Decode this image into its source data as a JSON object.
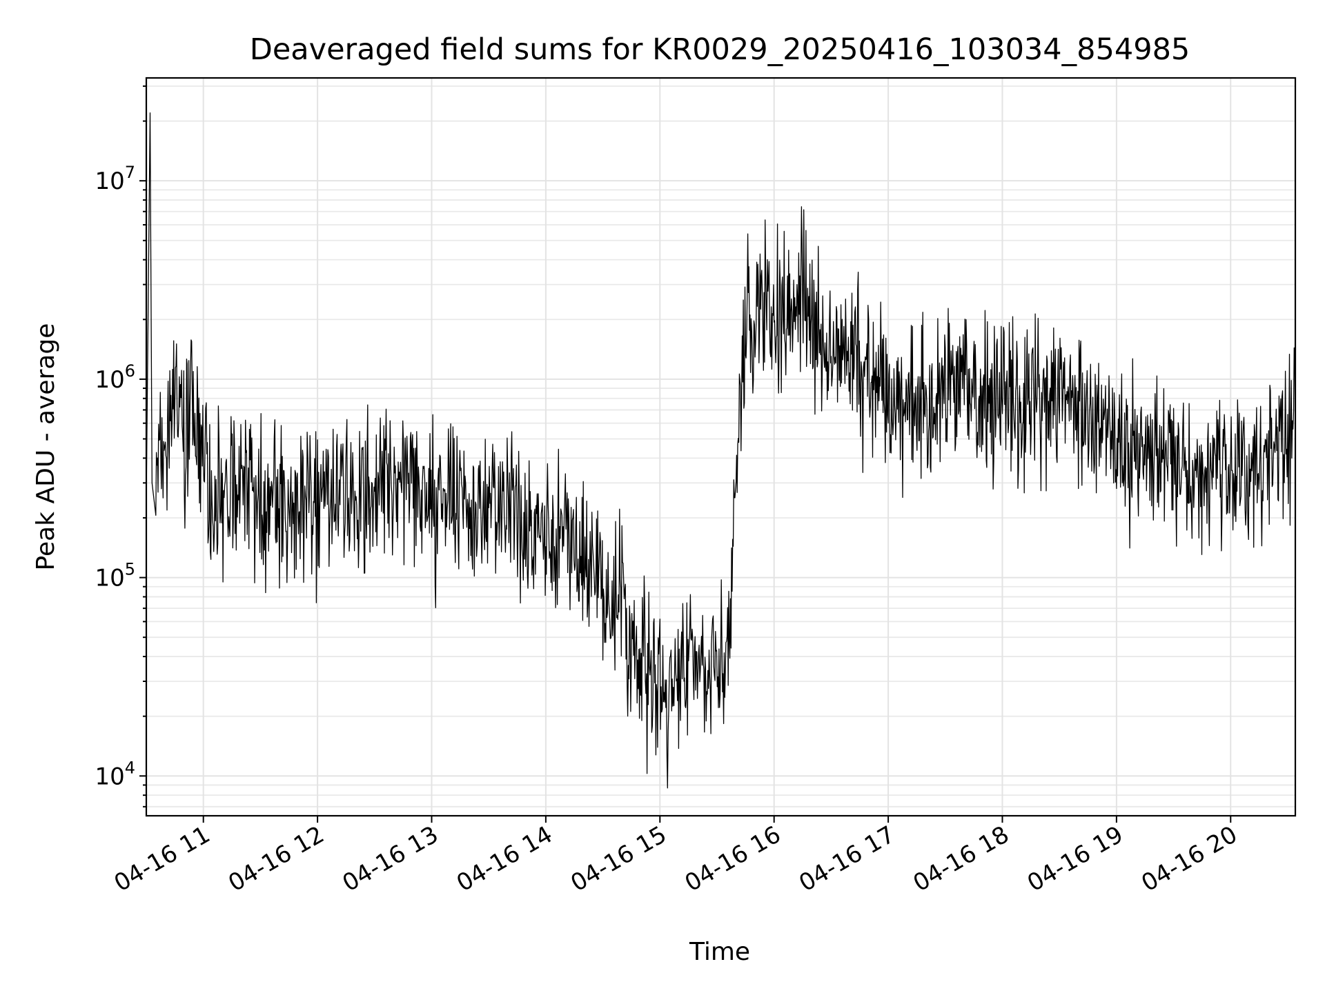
{
  "chart_data": {
    "type": "line",
    "title": "Deaveraged field sums for KR0029_20250416_103034_854985",
    "xlabel": "Time",
    "ylabel": "Peak ADU - average",
    "xlim": [
      "04-16 10:30",
      "04-16 20:34"
    ],
    "ylim": [
      6300,
      33000000
    ],
    "y_scale": "log",
    "grid": true,
    "x_ticks": [
      "04-16 11",
      "04-16 12",
      "04-16 13",
      "04-16 14",
      "04-16 15",
      "04-16 16",
      "04-16 17",
      "04-16 18",
      "04-16 19",
      "04-16 20"
    ],
    "y_ticks": [
      {
        "value": 10000,
        "base": "10",
        "exp": "4"
      },
      {
        "value": 100000,
        "base": "10",
        "exp": "5"
      },
      {
        "value": 1000000,
        "base": "10",
        "exp": "6"
      },
      {
        "value": 10000000,
        "base": "10",
        "exp": "7"
      }
    ],
    "series": [
      {
        "color": "#000000",
        "x": [
          "04-16 10:30",
          "04-16 10:32",
          "04-16 10:33",
          "04-16 10:35",
          "04-16 10:40",
          "04-16 10:45",
          "04-16 10:50",
          "04-16 10:55",
          "04-16 11:00",
          "04-16 11:10",
          "04-16 11:20",
          "04-16 11:30",
          "04-16 11:40",
          "04-16 11:50",
          "04-16 12:00",
          "04-16 12:10",
          "04-16 12:20",
          "04-16 12:30",
          "04-16 12:40",
          "04-16 12:50",
          "04-16 13:00",
          "04-16 13:10",
          "04-16 13:20",
          "04-16 13:30",
          "04-16 13:40",
          "04-16 13:50",
          "04-16 14:00",
          "04-16 14:10",
          "04-16 14:20",
          "04-16 14:30",
          "04-16 14:40",
          "04-16 14:48",
          "04-16 14:56",
          "04-16 15:04",
          "04-16 15:12",
          "04-16 15:20",
          "04-16 15:28",
          "04-16 15:35",
          "04-16 15:40",
          "04-16 15:45",
          "04-16 15:50",
          "04-16 15:55",
          "04-16 16:00",
          "04-16 16:05",
          "04-16 16:10",
          "04-16 16:15",
          "04-16 16:20",
          "04-16 16:25",
          "04-16 16:30",
          "04-16 16:40",
          "04-16 16:50",
          "04-16 17:00",
          "04-16 17:10",
          "04-16 17:20",
          "04-16 17:30",
          "04-16 17:40",
          "04-16 17:50",
          "04-16 18:00",
          "04-16 18:10",
          "04-16 18:20",
          "04-16 18:30",
          "04-16 18:40",
          "04-16 18:50",
          "04-16 19:00",
          "04-16 19:10",
          "04-16 19:20",
          "04-16 19:30",
          "04-16 19:40",
          "04-16 19:50",
          "04-16 20:00",
          "04-16 20:10",
          "04-16 20:20",
          "04-16 20:30",
          "04-16 20:34"
        ],
        "values": [
          250000,
          22000000,
          300000,
          400000,
          500000,
          700000,
          600000,
          800000,
          330000,
          250000,
          280000,
          230000,
          240000,
          220000,
          250000,
          270000,
          260000,
          270000,
          300000,
          280000,
          250000,
          280000,
          240000,
          230000,
          200000,
          180000,
          170000,
          160000,
          120000,
          90000,
          70000,
          40000,
          30000,
          25000,
          35000,
          45000,
          40000,
          40000,
          300000,
          2000000,
          2500000,
          2200000,
          2000000,
          2400000,
          2100000,
          2300000,
          1800000,
          1600000,
          1500000,
          1300000,
          1000000,
          900000,
          800000,
          700000,
          900000,
          1000000,
          900000,
          800000,
          700000,
          900000,
          800000,
          700000,
          600000,
          500000,
          450000,
          420000,
          380000,
          330000,
          300000,
          320000,
          350000,
          400000,
          500000,
          600000
        ]
      }
    ]
  }
}
